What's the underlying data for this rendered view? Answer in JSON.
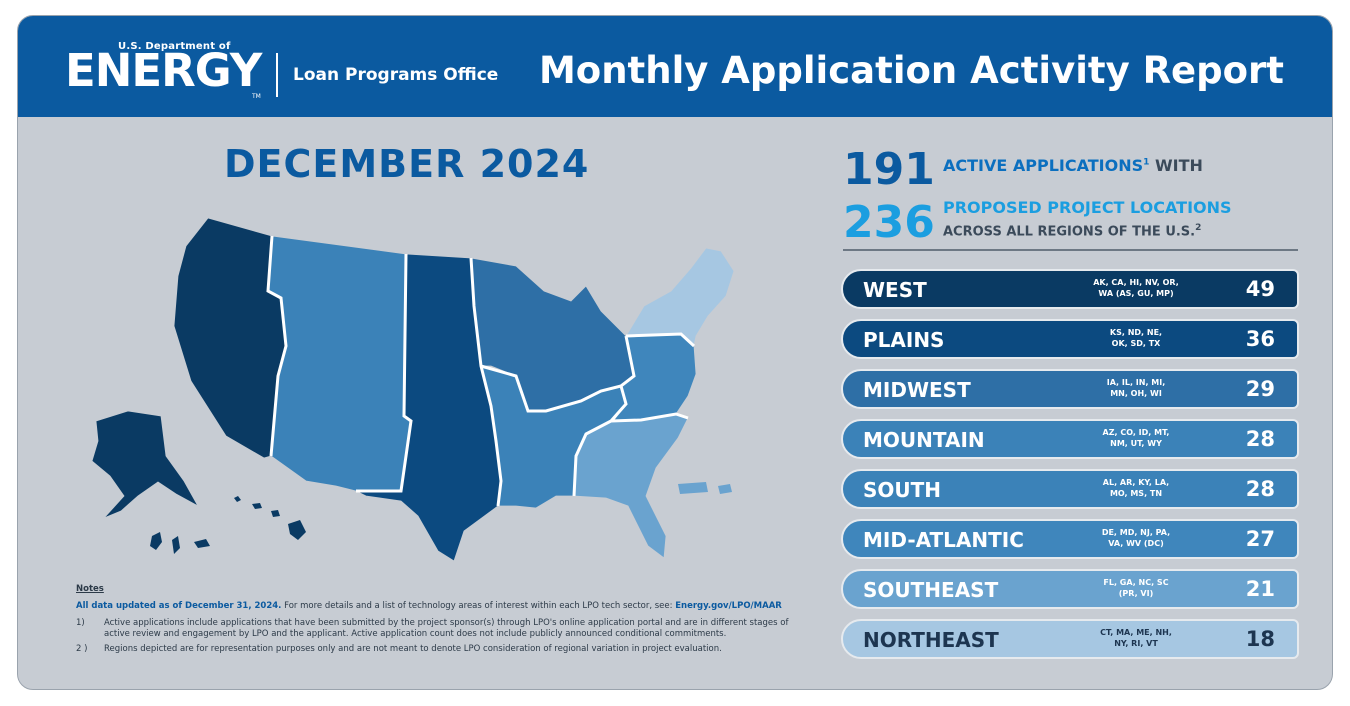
{
  "header": {
    "logo_small": "U.S. Department of",
    "logo_big": "ENERGY",
    "logo_tm": "TM",
    "office": "Loan Programs Office",
    "title": "Monthly Application Activity Report"
  },
  "month": "DECEMBER 2024",
  "stats": {
    "active_num": "191",
    "active_label": "ACTIVE APPLICATIONS",
    "active_sup": "1",
    "active_with": "WITH",
    "locations_num": "236",
    "locations_label": "PROPOSED PROJECT LOCATIONS",
    "locations_sub": "ACROSS ALL REGIONS OF THE U.S.",
    "locations_sup": "2"
  },
  "regions": [
    {
      "name": "WEST",
      "states_line1": "AK, CA, HI, NV, OR,",
      "states_line2": "WA (AS, GU, MP)",
      "count": "49",
      "color": "#0a3a63"
    },
    {
      "name": "PLAINS",
      "states_line1": "KS, ND, NE,",
      "states_line2": "OK, SD, TX",
      "count": "36",
      "color": "#0c4a80"
    },
    {
      "name": "MIDWEST",
      "states_line1": "IA, IL, IN, MI,",
      "states_line2": "MN, OH, WI",
      "count": "29",
      "color": "#2e6fa6"
    },
    {
      "name": "MOUNTAIN",
      "states_line1": "AZ, CO, ID, MT,",
      "states_line2": "NM, UT, WY",
      "count": "28",
      "color": "#3b82b8"
    },
    {
      "name": "SOUTH",
      "states_line1": "AL, AR, KY, LA,",
      "states_line2": "MO, MS, TN",
      "count": "28",
      "color": "#3b82b8"
    },
    {
      "name": "MID-ATLANTIC",
      "states_line1": "DE, MD, NJ, PA,",
      "states_line2": "VA, WV (DC)",
      "count": "27",
      "color": "#3f86bc"
    },
    {
      "name": "SOUTHEAST",
      "states_line1": "FL, GA, NC, SC",
      "states_line2": "(PR, VI)",
      "count": "21",
      "color": "#6aa3cf"
    },
    {
      "name": "NORTHEAST",
      "states_line1": "CT, MA, ME, NH,",
      "states_line2": "NY, RI, VT",
      "count": "18",
      "color": "#a6c7e2",
      "text_color": "#1d3550"
    }
  ],
  "notes": {
    "title": "Notes",
    "lead_bold": "All data updated as of December 31, 2024.",
    "lead_text": "For more details and a list of technology areas of interest within each LPO tech sector, see:",
    "lead_link": "Energy.gov/LPO/MAAR",
    "items": [
      {
        "num": "1)",
        "text": "Active applications include applications that have been submitted by the project sponsor(s) through LPO's online application portal and are in different stages of active review and engagement by LPO and the applicant. Active application count does not include publicly announced conditional commitments."
      },
      {
        "num": "2 )",
        "text": "Regions depicted are for representation purposes only and are not meant to denote LPO consideration of regional variation in project evaluation."
      }
    ]
  },
  "map_colors": {
    "west": "#0a3a63",
    "plains": "#0c4a80",
    "midwest": "#2e6fa6",
    "mountain": "#3b82b8",
    "south": "#3b82b8",
    "mid_atlantic": "#3f86bc",
    "southeast": "#6aa3cf",
    "northeast": "#a6c7e2"
  }
}
